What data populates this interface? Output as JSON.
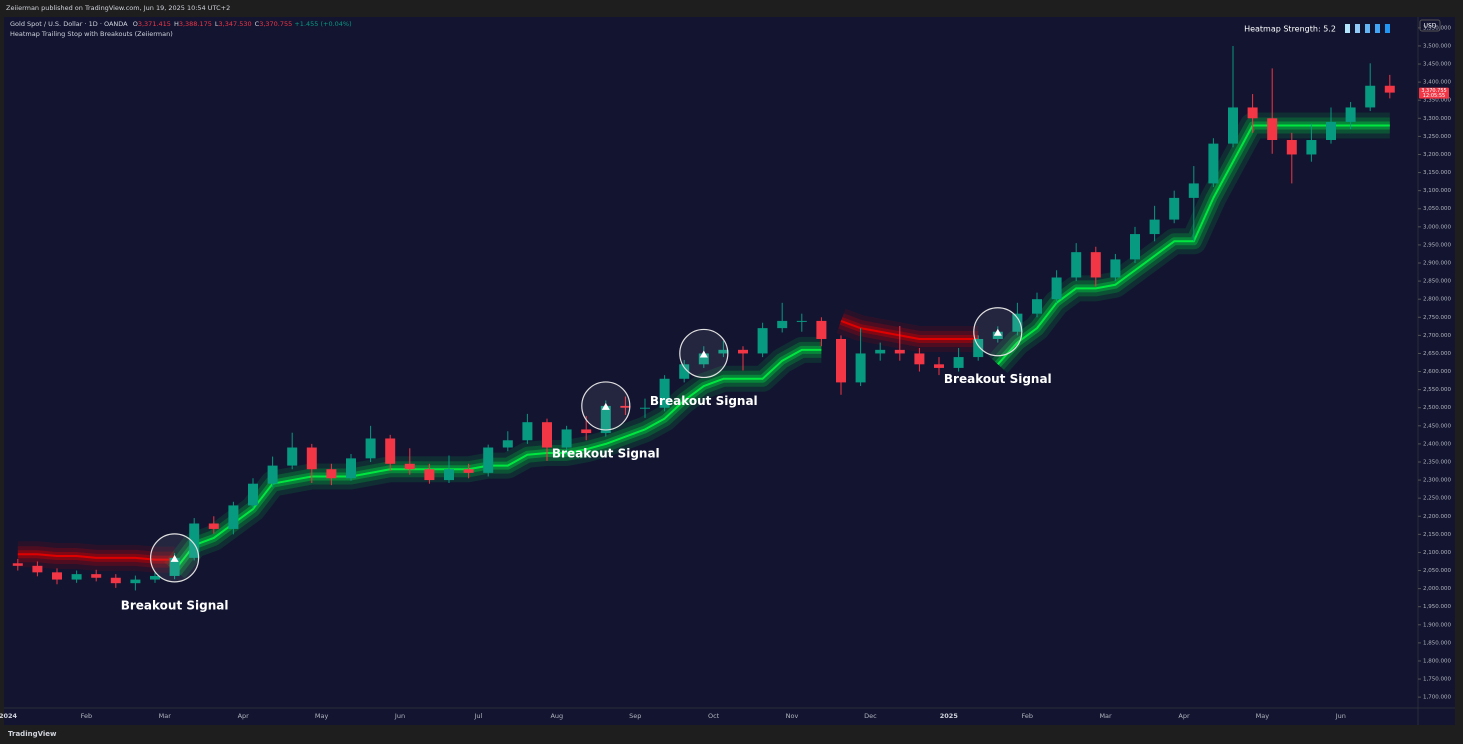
{
  "header": {
    "publisher": "Zeiierman published on TradingView.com, Jun 19, 2025 10:54 UTC+2",
    "symbol": "Gold Spot / U.S. Dollar · 1D · OANDA",
    "ohlc": [
      {
        "label": "O",
        "value": "3,371.415"
      },
      {
        "label": "H",
        "value": "3,388.175"
      },
      {
        "label": "L",
        "value": "3,347.530"
      },
      {
        "label": "C",
        "value": "3,370.755"
      }
    ],
    "change": "+1.455 (+0.04%)",
    "indicator": "Heatmap Trailing Stop with Breakouts (Zeiierman)",
    "heatmap_strength": "Heatmap Strength: 5.2",
    "currency": "USD",
    "last_price": "3,370.755",
    "countdown": "12:05:55"
  },
  "footer": {
    "brand": "TradingView"
  },
  "chart_data": {
    "type": "candlestick",
    "categories": [
      "2024",
      null,
      null,
      null,
      "Feb",
      null,
      null,
      null,
      "Mar",
      null,
      null,
      null,
      "Apr",
      null,
      null,
      null,
      "May",
      null,
      null,
      null,
      "Jun",
      null,
      null,
      null,
      "Jul",
      null,
      null,
      null,
      "Aug",
      null,
      null,
      null,
      "Sep",
      null,
      null,
      null,
      "Oct",
      null,
      null,
      null,
      "Nov",
      null,
      null,
      null,
      "Dec",
      null,
      null,
      null,
      "2025",
      null,
      null,
      null,
      "Feb",
      null,
      null,
      null,
      "Mar",
      null,
      null,
      null,
      "Apr",
      null,
      null,
      null,
      "May",
      null,
      null,
      null,
      "Jun",
      null,
      null
    ],
    "open": [
      2070,
      2063,
      2045,
      2025,
      2040,
      2030,
      2015,
      2025,
      2035,
      2085,
      2180,
      2165,
      2230,
      2290,
      2340,
      2390,
      2330,
      2305,
      2360,
      2415,
      2345,
      2330,
      2300,
      2330,
      2320,
      2390,
      2410,
      2460,
      2390,
      2440,
      2430,
      2505,
      2500,
      2500,
      2580,
      2620,
      2650,
      2660,
      2650,
      2720,
      2740,
      2740,
      2690,
      2570,
      2650,
      2660,
      2650,
      2620,
      2610,
      2640,
      2690,
      2710,
      2760,
      2800,
      2860,
      2930,
      2860,
      2910,
      2980,
      3020,
      3080,
      3120,
      3230,
      3330,
      3300,
      3240,
      3200,
      3240,
      3290,
      3330,
      3390
    ],
    "high": [
      2082,
      2075,
      2056,
      2050,
      2052,
      2040,
      2036,
      2045,
      2098,
      2195,
      2200,
      2240,
      2305,
      2365,
      2431,
      2400,
      2345,
      2372,
      2450,
      2425,
      2388,
      2345,
      2368,
      2345,
      2398,
      2435,
      2483,
      2470,
      2450,
      2477,
      2520,
      2531,
      2525,
      2590,
      2632,
      2670,
      2685,
      2670,
      2735,
      2790,
      2760,
      2750,
      2700,
      2720,
      2680,
      2726,
      2665,
      2640,
      2665,
      2700,
      2725,
      2790,
      2818,
      2880,
      2955,
      2945,
      2925,
      3000,
      3058,
      3100,
      3168,
      3245,
      3500,
      3367,
      3438,
      3260,
      3285,
      3330,
      3345,
      3452,
      3420
    ],
    "low": [
      2050,
      2034,
      2012,
      2016,
      2020,
      2002,
      1995,
      2016,
      2026,
      2078,
      2152,
      2150,
      2222,
      2280,
      2330,
      2292,
      2286,
      2298,
      2350,
      2325,
      2315,
      2290,
      2292,
      2305,
      2310,
      2380,
      2400,
      2353,
      2370,
      2410,
      2420,
      2480,
      2472,
      2490,
      2570,
      2610,
      2640,
      2603,
      2640,
      2708,
      2710,
      2670,
      2536,
      2560,
      2630,
      2630,
      2600,
      2590,
      2600,
      2630,
      2680,
      2700,
      2750,
      2790,
      2850,
      2835,
      2850,
      2900,
      2960,
      3010,
      2960,
      3110,
      3220,
      3260,
      3202,
      3120,
      3180,
      3230,
      3270,
      3320,
      3355
    ],
    "close": [
      2063,
      2045,
      2025,
      2040,
      2030,
      2015,
      2025,
      2035,
      2085,
      2180,
      2165,
      2230,
      2290,
      2340,
      2390,
      2330,
      2305,
      2360,
      2415,
      2345,
      2330,
      2300,
      2330,
      2320,
      2390,
      2410,
      2460,
      2390,
      2440,
      2430,
      2505,
      2500,
      2500,
      2580,
      2620,
      2650,
      2660,
      2650,
      2720,
      2740,
      2740,
      2690,
      2570,
      2650,
      2660,
      2650,
      2620,
      2610,
      2640,
      2690,
      2710,
      2760,
      2800,
      2860,
      2930,
      2860,
      2910,
      2980,
      3020,
      3080,
      3120,
      3230,
      3330,
      3300,
      3240,
      3200,
      3240,
      3290,
      3330,
      3390,
      3371
    ],
    "up_color": "#089981",
    "down_color": "#f23645",
    "series": [
      {
        "name": "Bullish trail",
        "color": "#00e640",
        "values": [
          null,
          null,
          null,
          null,
          null,
          null,
          null,
          null,
          2050,
          2120,
          2140,
          2180,
          2220,
          2290,
          2300,
          2310,
          2310,
          2310,
          2320,
          2330,
          2330,
          2330,
          2330,
          2330,
          2340,
          2340,
          2370,
          2375,
          2375,
          2385,
          2400,
          2420,
          2440,
          2470,
          2520,
          2560,
          2580,
          2580,
          2580,
          2630,
          2660,
          2660,
          null,
          null,
          null,
          null,
          null,
          null,
          null,
          null,
          2620,
          2680,
          2720,
          2790,
          2830,
          2830,
          2840,
          2880,
          2920,
          2960,
          2960,
          3080,
          3180,
          3280,
          3280,
          3280,
          3280,
          3280,
          3280,
          3280,
          3280
        ]
      },
      {
        "name": "Bearish trail",
        "color": "#e00000",
        "values": [
          2095,
          2095,
          2090,
          2090,
          2085,
          2085,
          2085,
          2080,
          2080,
          null,
          null,
          null,
          null,
          null,
          null,
          null,
          null,
          null,
          null,
          null,
          null,
          null,
          null,
          null,
          null,
          null,
          null,
          null,
          null,
          null,
          null,
          null,
          null,
          null,
          null,
          null,
          null,
          null,
          null,
          null,
          null,
          null,
          2740,
          2720,
          2710,
          2700,
          2690,
          2690,
          2690,
          2690,
          null,
          null,
          null,
          null,
          null,
          null,
          null,
          null,
          null,
          null,
          null,
          null,
          null,
          null,
          null,
          null,
          null,
          null,
          null,
          null,
          null
        ]
      }
    ],
    "signals": [
      {
        "label": "Breakout Signal",
        "index": 8
      },
      {
        "label": "Breakout Signal",
        "index": 30
      },
      {
        "label": "Breakout Signal",
        "index": 35
      },
      {
        "label": "Breakout Signal",
        "index": 50
      }
    ],
    "ylim": [
      1670,
      3580
    ],
    "yticks": [
      {
        "value": 1700,
        "label": "1,700.000"
      },
      {
        "value": 1750,
        "label": "1,750.000"
      },
      {
        "value": 1800,
        "label": "1,800.000"
      },
      {
        "value": 1850,
        "label": "1,850.000"
      },
      {
        "value": 1900,
        "label": "1,900.000"
      },
      {
        "value": 1950,
        "label": "1,950.000"
      },
      {
        "value": 2000,
        "label": "2,000.000"
      },
      {
        "value": 2050,
        "label": "2,050.000"
      },
      {
        "value": 2100,
        "label": "2,100.000"
      },
      {
        "value": 2150,
        "label": "2,150.000"
      },
      {
        "value": 2200,
        "label": "2,200.000"
      },
      {
        "value": 2250,
        "label": "2,250.000"
      },
      {
        "value": 2300,
        "label": "2,300.000"
      },
      {
        "value": 2350,
        "label": "2,350.000"
      },
      {
        "value": 2400,
        "label": "2,400.000"
      },
      {
        "value": 2450,
        "label": "2,450.000"
      },
      {
        "value": 2500,
        "label": "2,500.000"
      },
      {
        "value": 2550,
        "label": "2,550.000"
      },
      {
        "value": 2600,
        "label": "2,600.000"
      },
      {
        "value": 2650,
        "label": "2,650.000"
      },
      {
        "value": 2700,
        "label": "2,700.000"
      },
      {
        "value": 2750,
        "label": "2,750.000"
      },
      {
        "value": 2800,
        "label": "2,800.000"
      },
      {
        "value": 2850,
        "label": "2,850.000"
      },
      {
        "value": 2900,
        "label": "2,900.000"
      },
      {
        "value": 2950,
        "label": "2,950.000"
      },
      {
        "value": 3000,
        "label": "3,000.000"
      },
      {
        "value": 3050,
        "label": "3,050.000"
      },
      {
        "value": 3100,
        "label": "3,100.000"
      },
      {
        "value": 3150,
        "label": "3,150.000"
      },
      {
        "value": 3200,
        "label": "3,200.000"
      },
      {
        "value": 3250,
        "label": "3,250.000"
      },
      {
        "value": 3300,
        "label": "3,300.000"
      },
      {
        "value": 3350,
        "label": "3,350.000"
      },
      {
        "value": 3400,
        "label": "3,400.000"
      },
      {
        "value": 3450,
        "label": "3,450.000"
      },
      {
        "value": 3500,
        "label": "3,500.000"
      },
      {
        "value": 3550,
        "label": "3,550.000"
      }
    ],
    "grid": false
  }
}
